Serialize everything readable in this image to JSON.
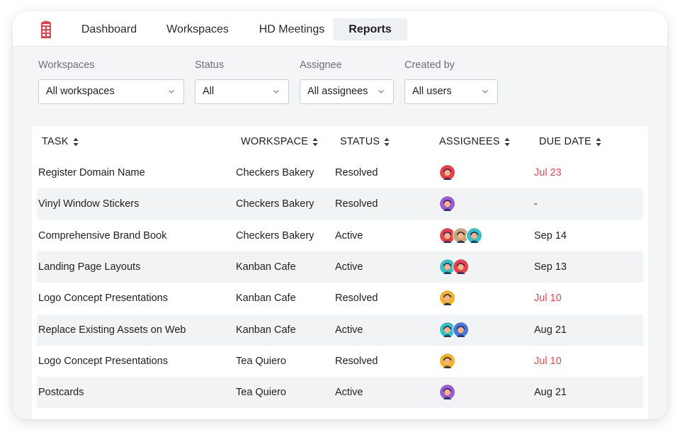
{
  "nav": {
    "tabs": [
      {
        "label": "Dashboard",
        "active": false
      },
      {
        "label": "Workspaces",
        "active": false
      },
      {
        "label": "HD Meetings",
        "active": false
      },
      {
        "label": "Reports",
        "active": true
      }
    ]
  },
  "filters": [
    {
      "label": "Workspaces",
      "value": "All workspaces"
    },
    {
      "label": "Status",
      "value": "All"
    },
    {
      "label": "Assignee",
      "value": "All assignees"
    },
    {
      "label": "Created by",
      "value": "All users"
    }
  ],
  "table": {
    "headers": [
      "TASK",
      "WORKSPACE",
      "STATUS",
      "ASSIGNEES",
      "DUE DATE"
    ],
    "rows": [
      {
        "task": "Register Domain Name",
        "workspace": "Checkers Bakery",
        "status": "Resolved",
        "assignees": [
          "red"
        ],
        "due": "Jul 23",
        "overdue": true
      },
      {
        "task": "Vinyl Window Stickers",
        "workspace": "Checkers Bakery",
        "status": "Resolved",
        "assignees": [
          "purple"
        ],
        "due": "-",
        "overdue": false
      },
      {
        "task": "Comprehensive Brand Book",
        "workspace": "Checkers Bakery",
        "status": "Active",
        "assignees": [
          "red",
          "tan",
          "teal"
        ],
        "due": "Sep 14",
        "overdue": false
      },
      {
        "task": "Landing Page Layouts",
        "workspace": "Kanban Cafe",
        "status": "Active",
        "assignees": [
          "teal",
          "red"
        ],
        "due": "Sep 13",
        "overdue": false
      },
      {
        "task": "Logo Concept Presentations",
        "workspace": "Kanban Cafe",
        "status": "Resolved",
        "assignees": [
          "yellow"
        ],
        "due": "Jul 10",
        "overdue": true
      },
      {
        "task": "Replace Existing Assets on Web",
        "workspace": "Kanban Cafe",
        "status": "Active",
        "assignees": [
          "teal",
          "blue"
        ],
        "due": "Aug 21",
        "overdue": false
      },
      {
        "task": "Logo Concept Presentations",
        "workspace": "Tea Quiero",
        "status": "Resolved",
        "assignees": [
          "yellow"
        ],
        "due": "Jul 10",
        "overdue": true
      },
      {
        "task": "Postcards",
        "workspace": "Tea Quiero",
        "status": "Active",
        "assignees": [
          "purple"
        ],
        "due": "Aug 21",
        "overdue": false
      }
    ]
  },
  "avatar_colors": {
    "red": "#e8414b",
    "purple": "#9b5bd6",
    "tan": "#c9a57a",
    "teal": "#35c1c9",
    "yellow": "#f4b42a",
    "blue": "#4a78d8"
  },
  "colors": {
    "accent_logo": "#e8414b",
    "overdue": "#e5464b"
  },
  "icons": {
    "logo": "phone-booth-icon",
    "sort": "sort-updown-icon",
    "dropdown": "chevron-down-icon"
  }
}
